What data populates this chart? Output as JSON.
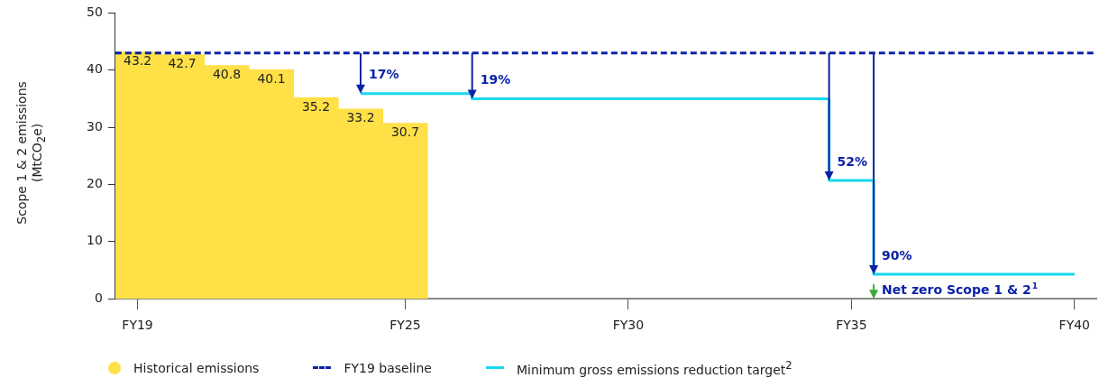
{
  "chart_data": {
    "type": "bar",
    "ylabel": "Scope 1 & 2  emissions (MtCO$_{2}$e)",
    "categories": [
      "FY19",
      null,
      null,
      null,
      null,
      null,
      "FY25",
      null,
      null,
      null,
      null,
      "FY30",
      null,
      null,
      null,
      null,
      "FY35",
      null,
      null,
      null,
      null,
      "FY40"
    ],
    "ylim": [
      0,
      50
    ],
    "yticks": [
      0,
      10,
      20,
      30,
      40,
      50
    ],
    "grid": false,
    "legend": "bottom",
    "series": [
      {
        "name": "Historical emissions",
        "color": "#ffe047",
        "values": [
          43.2,
          42.7,
          40.8,
          40.1,
          35.2,
          33.2,
          30.7,
          null,
          null,
          null,
          null,
          null,
          null,
          null,
          null,
          null,
          null,
          null,
          null,
          null,
          null,
          null
        ],
        "value_labels": [
          "43.2",
          "42.7",
          "40.8",
          "40.1",
          "35.2",
          "33.2",
          "30.7",
          null,
          null,
          null,
          null,
          null,
          null,
          null,
          null,
          null,
          null,
          null,
          null,
          null,
          null,
          null
        ]
      },
      {
        "name": "Minimum gross emissions reduction target$^{2}$",
        "type": "step",
        "color": "#19d7ef",
        "values": [
          null,
          null,
          null,
          null,
          null,
          35.9,
          35.9,
          35.9,
          35.0,
          35.0,
          35.0,
          35.0,
          35.0,
          35.0,
          35.0,
          35.0,
          20.7,
          4.3,
          4.3,
          4.3,
          4.3,
          4.3
        ]
      }
    ],
    "ref_lines": [
      {
        "axis": "y",
        "value": 43,
        "label": "FY19 baseline",
        "color": "#0b22a8",
        "line_style": "dashed"
      }
    ],
    "annotations": [
      "17%",
      "19%",
      "52%",
      "90%",
      "Net zero Scope 1 & 2$^{1}$"
    ]
  }
}
